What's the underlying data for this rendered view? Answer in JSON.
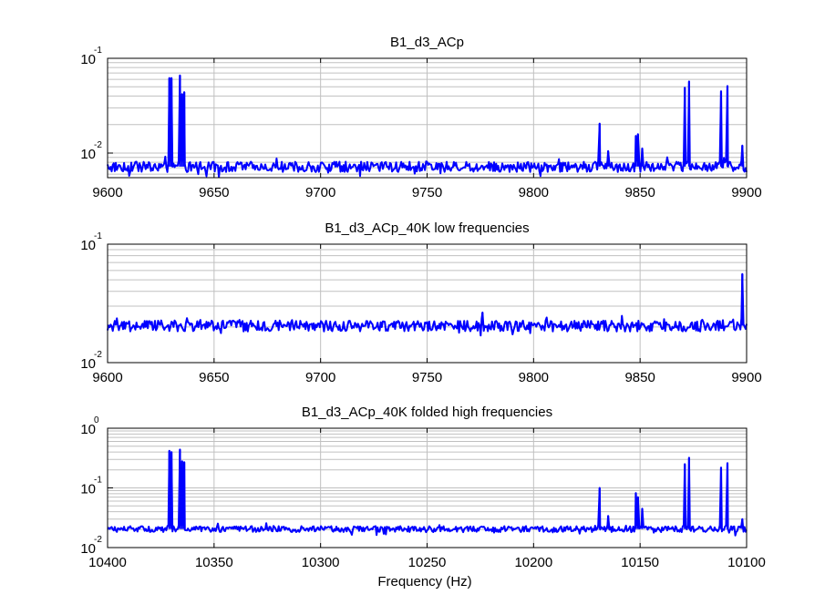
{
  "figure": {
    "xlabel": "Frequency (Hz)",
    "colors": {
      "line": "#0000ff",
      "grid": "#c0c0c0",
      "axes": "#000000",
      "background": "#ffffff"
    }
  },
  "chart_data": [
    {
      "type": "line",
      "title": "B1_d3_ACp",
      "xlabel": "",
      "ylabel": "",
      "xlim": [
        9600,
        9900
      ],
      "x_reversed": false,
      "ylim": [
        0.0055,
        0.1
      ],
      "yscale": "log",
      "grid": true,
      "xticks": [
        9600,
        9650,
        9700,
        9750,
        9800,
        9850,
        9900
      ],
      "xtick_labels": [
        "9600",
        "9650",
        "9700",
        "9750",
        "9800",
        "9850",
        "9900"
      ],
      "ytick_labels": [
        {
          "base": "10",
          "exp": "-2",
          "value": 0.01
        },
        {
          "base": "10",
          "exp": "-1",
          "value": 0.1
        }
      ],
      "noise_floor": 0.0072,
      "noise_spread": 0.0009,
      "series": [
        {
          "color": "#0000ff",
          "peaks": [
            {
              "x": 9629,
              "y": 0.062
            },
            {
              "x": 9630,
              "y": 0.062
            },
            {
              "x": 9634,
              "y": 0.066
            },
            {
              "x": 9635,
              "y": 0.042
            },
            {
              "x": 9636,
              "y": 0.044
            },
            {
              "x": 9831,
              "y": 0.0205
            },
            {
              "x": 9835,
              "y": 0.0105
            },
            {
              "x": 9848,
              "y": 0.0152
            },
            {
              "x": 9849,
              "y": 0.0158
            },
            {
              "x": 9851,
              "y": 0.0112
            },
            {
              "x": 9871,
              "y": 0.049
            },
            {
              "x": 9873,
              "y": 0.057
            },
            {
              "x": 9888,
              "y": 0.045
            },
            {
              "x": 9891,
              "y": 0.051
            },
            {
              "x": 9898,
              "y": 0.012
            }
          ]
        }
      ]
    },
    {
      "type": "line",
      "title": "B1_d3_ACp_40K low frequencies",
      "xlabel": "",
      "ylabel": "",
      "xlim": [
        9600,
        9900
      ],
      "x_reversed": false,
      "ylim": [
        0.01,
        0.1
      ],
      "yscale": "log",
      "grid": true,
      "xticks": [
        9600,
        9650,
        9700,
        9750,
        9800,
        9850,
        9900
      ],
      "xtick_labels": [
        "9600",
        "9650",
        "9700",
        "9750",
        "9800",
        "9850",
        "9900"
      ],
      "ytick_labels": [
        {
          "base": "10",
          "exp": "-2",
          "value": 0.01
        },
        {
          "base": "10",
          "exp": "-1",
          "value": 0.1
        }
      ],
      "noise_floor": 0.0205,
      "noise_spread": 0.0022,
      "series": [
        {
          "color": "#0000ff",
          "peaks": [
            {
              "x": 9776,
              "y": 0.0265
            },
            {
              "x": 9898,
              "y": 0.056
            }
          ]
        }
      ]
    },
    {
      "type": "line",
      "title": "B1_d3_ACp_40K folded high frequencies",
      "xlabel": "Frequency (Hz)",
      "ylabel": "",
      "xlim": [
        10400,
        10100
      ],
      "x_reversed": true,
      "ylim": [
        0.01,
        1
      ],
      "yscale": "log",
      "grid": true,
      "xticks": [
        10400,
        10350,
        10300,
        10250,
        10200,
        10150,
        10100
      ],
      "xtick_labels": [
        "10400",
        "10350",
        "10300",
        "10250",
        "10200",
        "10150",
        "10100"
      ],
      "ytick_labels": [
        {
          "base": "10",
          "exp": "-2",
          "value": 0.01
        },
        {
          "base": "10",
          "exp": "-1",
          "value": 0.1
        },
        {
          "base": "10",
          "exp": "0",
          "value": 1
        }
      ],
      "noise_floor": 0.0205,
      "noise_spread": 0.0024,
      "series": [
        {
          "color": "#0000ff",
          "peaks": [
            {
              "x": 10371,
              "y": 0.42
            },
            {
              "x": 10370,
              "y": 0.4
            },
            {
              "x": 10366,
              "y": 0.44
            },
            {
              "x": 10365,
              "y": 0.28
            },
            {
              "x": 10364,
              "y": 0.27
            },
            {
              "x": 10169,
              "y": 0.1
            },
            {
              "x": 10165,
              "y": 0.034
            },
            {
              "x": 10152,
              "y": 0.082
            },
            {
              "x": 10151,
              "y": 0.07
            },
            {
              "x": 10149,
              "y": 0.045
            },
            {
              "x": 10129,
              "y": 0.25
            },
            {
              "x": 10127,
              "y": 0.32
            },
            {
              "x": 10112,
              "y": 0.22
            },
            {
              "x": 10109,
              "y": 0.26
            },
            {
              "x": 10102,
              "y": 0.03
            }
          ]
        }
      ]
    }
  ]
}
